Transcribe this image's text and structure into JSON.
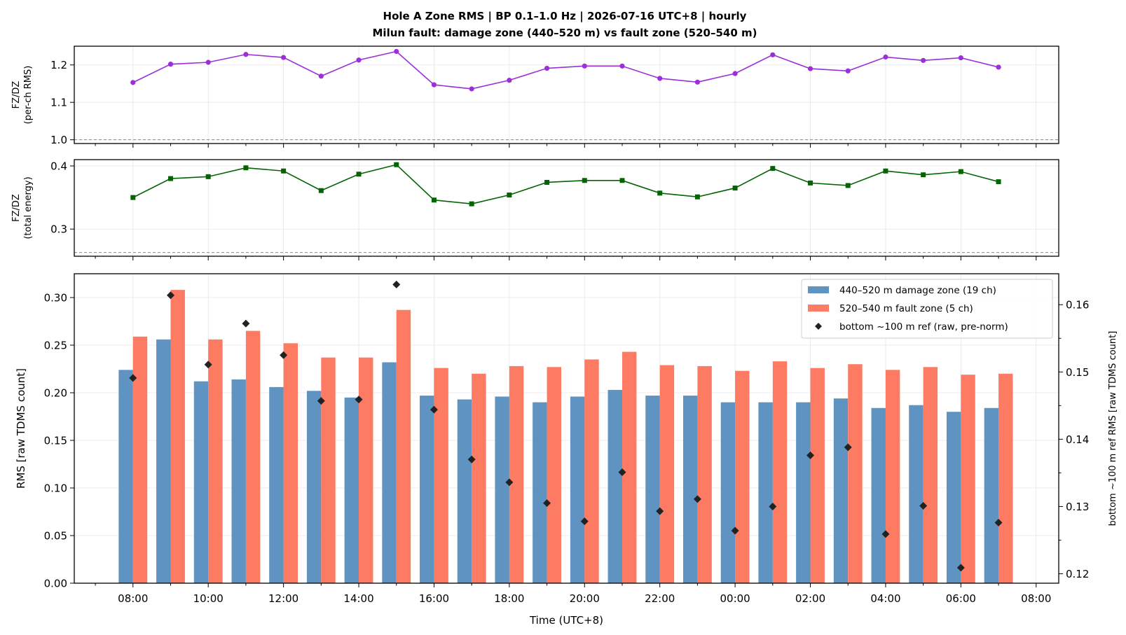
{
  "title_line1": "Hole A Zone RMS  |  BP 0.1–1.0 Hz  |  2026-07-16 UTC+8  |  hourly",
  "title_line2": "Milun fault: damage zone (440–520 m) vs fault zone (520–540 m)",
  "colors": {
    "damage": "#5f93c1",
    "fault": "#fd7a63",
    "ratio_rms": "#9b30d6",
    "ratio_energy": "#046404",
    "ref": "#222222",
    "grid": "#e6e6e6",
    "baseline": "#888888"
  },
  "chart_data": [
    {
      "type": "line",
      "name": "fzdz-per-ch-rms",
      "ylabel_line1": "FZ/DZ",
      "ylabel_line2": "(per-ch RMS)",
      "ylim": [
        0.99,
        1.25
      ],
      "yticks": [
        1.0,
        1.1,
        1.2
      ],
      "ytick_labels": [
        "1.0",
        "1.1",
        "1.2"
      ],
      "reference_line": 1.0,
      "grid": true,
      "x_hours": [
        0,
        1,
        2,
        3,
        4,
        5,
        6,
        7,
        8,
        9,
        10,
        11,
        12,
        13,
        14,
        15,
        16,
        17,
        18,
        19,
        20,
        21,
        22,
        23
      ],
      "values": [
        1.153,
        1.202,
        1.207,
        1.228,
        1.22,
        1.17,
        1.213,
        1.236,
        1.147,
        1.136,
        1.159,
        1.191,
        1.197,
        1.197,
        1.164,
        1.154,
        1.177,
        1.227,
        1.19,
        1.184,
        1.221,
        1.212,
        1.219,
        1.194
      ]
    },
    {
      "type": "line",
      "name": "fzdz-total-energy",
      "ylabel_line1": "FZ/DZ",
      "ylabel_line2": "(total energy)",
      "ylim": [
        0.257,
        0.41
      ],
      "yticks": [
        0.3,
        0.4
      ],
      "ytick_labels": [
        "0.3",
        "0.4"
      ],
      "reference_line": 0.263,
      "grid": true,
      "x_hours": [
        0,
        1,
        2,
        3,
        4,
        5,
        6,
        7,
        8,
        9,
        10,
        11,
        12,
        13,
        14,
        15,
        16,
        17,
        18,
        19,
        20,
        21,
        22,
        23
      ],
      "values": [
        0.35,
        0.38,
        0.383,
        0.397,
        0.392,
        0.361,
        0.387,
        0.402,
        0.346,
        0.34,
        0.354,
        0.374,
        0.377,
        0.377,
        0.357,
        0.351,
        0.365,
        0.396,
        0.373,
        0.369,
        0.392,
        0.386,
        0.391,
        0.375
      ]
    },
    {
      "type": "bar",
      "name": "zone-rms",
      "ylabel": "RMS  [raw TDMS count]",
      "ylabel_right": "bottom ~100 m ref RMS  [raw TDMS count]",
      "xlabel": "Time (UTC+8)",
      "ylim": [
        0,
        0.325
      ],
      "yticks": [
        0.0,
        0.05,
        0.1,
        0.15,
        0.2,
        0.25,
        0.3
      ],
      "ytick_labels": [
        "0.00",
        "0.05",
        "0.10",
        "0.15",
        "0.20",
        "0.25",
        "0.30"
      ],
      "ylim_right": [
        0.1186,
        0.1646
      ],
      "yticks_right": [
        0.12,
        0.13,
        0.14,
        0.15,
        0.16
      ],
      "ytick_labels_right": [
        "0.12",
        "0.13",
        "0.14",
        "0.15",
        "0.16"
      ],
      "xlim_hours": [
        -1.56,
        24.6
      ],
      "xticks_hours": [
        0,
        2,
        4,
        6,
        8,
        10,
        12,
        14,
        16,
        18,
        20,
        22,
        24
      ],
      "xtick_labels": [
        "08:00",
        "10:00",
        "12:00",
        "14:00",
        "16:00",
        "18:00",
        "20:00",
        "22:00",
        "00:00",
        "02:00",
        "04:00",
        "06:00",
        "08:00"
      ],
      "legend_position": "top-right",
      "grid": true,
      "series": [
        {
          "name": "440–520 m  damage zone (19 ch)",
          "kind": "bar",
          "values": [
            0.224,
            0.256,
            0.212,
            0.214,
            0.206,
            0.202,
            0.195,
            0.232,
            0.197,
            0.193,
            0.196,
            0.19,
            0.196,
            0.203,
            0.197,
            0.197,
            0.19,
            0.19,
            0.19,
            0.194,
            0.184,
            0.187,
            0.18,
            0.184
          ]
        },
        {
          "name": "520–540 m  fault zone (5 ch)",
          "kind": "bar",
          "values": [
            0.259,
            0.308,
            0.256,
            0.265,
            0.252,
            0.237,
            0.237,
            0.287,
            0.226,
            0.22,
            0.228,
            0.227,
            0.235,
            0.243,
            0.229,
            0.228,
            0.223,
            0.233,
            0.226,
            0.23,
            0.224,
            0.227,
            0.219,
            0.22
          ]
        },
        {
          "name": "bottom ~100 m ref (raw, pre-norm)",
          "kind": "scatter",
          "axis": "right",
          "values": [
            0.1491,
            0.1614,
            0.1511,
            0.1572,
            0.1525,
            0.1457,
            0.1459,
            0.163,
            0.1444,
            0.137,
            0.1336,
            0.1305,
            0.1278,
            0.1351,
            0.1293,
            0.1311,
            0.1264,
            0.13,
            0.1376,
            0.1388,
            0.1259,
            0.1301,
            0.1209,
            0.1276
          ]
        }
      ]
    }
  ]
}
